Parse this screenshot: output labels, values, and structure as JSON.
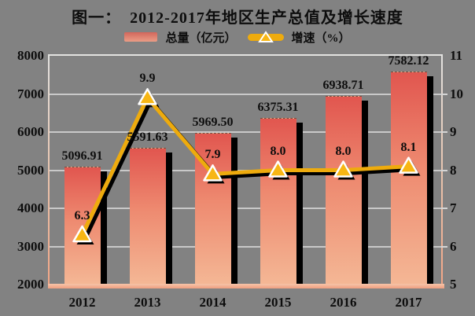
{
  "title": "图一：　2012-2017年地区生产总值及增长速度",
  "legend": {
    "items": [
      {
        "label": "总量（亿元）",
        "type": "bar"
      },
      {
        "label": "增速（%）",
        "type": "line"
      }
    ]
  },
  "chart_data": {
    "type": "bar+line",
    "title": "图一：　2012-2017年地区生产总值及增长速度",
    "categories": [
      "2012",
      "2013",
      "2014",
      "2015",
      "2016",
      "2017"
    ],
    "series": [
      {
        "name": "总量（亿元）",
        "type": "bar",
        "axis": "left",
        "values": [
          5096.91,
          5591.63,
          5969.5,
          6375.31,
          6938.71,
          7582.12
        ],
        "labels": [
          "5096.91",
          "5591.63",
          "5969.50",
          "6375.31",
          "6938.71",
          "7582.12"
        ]
      },
      {
        "name": "增速（%）",
        "type": "line",
        "axis": "right",
        "values": [
          6.3,
          9.9,
          7.9,
          8.0,
          8.0,
          8.1
        ],
        "labels": [
          "6.3",
          "9.9",
          "7.9",
          "8.0",
          "8.0",
          "8.1"
        ]
      }
    ],
    "left_axis": {
      "min": 2000,
      "max": 8000,
      "tick_step": 1000,
      "ticks": [
        "8000",
        "7000",
        "6000",
        "5000",
        "4000",
        "3000",
        "2000"
      ]
    },
    "right_axis": {
      "min": 5,
      "max": 11,
      "tick_step": 1,
      "ticks": [
        "11",
        "10",
        "9",
        "8",
        "7",
        "6",
        "5"
      ]
    },
    "layout_hints": {
      "grid": true,
      "legend_position": "top",
      "background": "gray"
    },
    "colors": {
      "background": "#828282",
      "gridline": "#c9c9c9",
      "bar_top": "#e1564f",
      "bar_bottom": "#f4b795",
      "line": "#eeab0d",
      "marker_fill": "#f7b614",
      "marker_border": "#ffffff",
      "shadow": "#000000",
      "axis_line": "#f0a283",
      "text": "#0d0d0d"
    }
  }
}
